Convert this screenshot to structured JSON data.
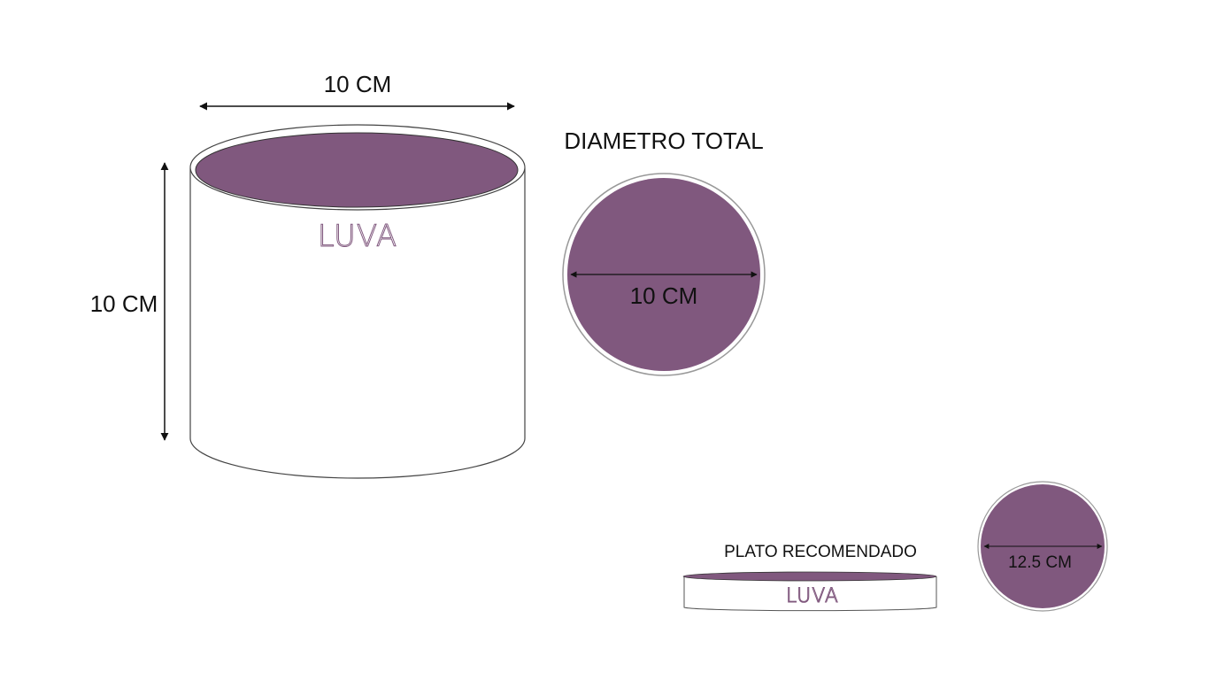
{
  "colors": {
    "accent": "#80587e",
    "outline": "#444444"
  },
  "cylinder": {
    "width_label": "10 CM",
    "height_label": "10 CM",
    "logo": "LUVA"
  },
  "top_view": {
    "title": "DIAMETRO TOTAL",
    "diameter_label": "10 CM"
  },
  "plate": {
    "title": "PLATO RECOMENDADO",
    "logo": "LUVA",
    "diameter_label": "12.5 CM"
  }
}
